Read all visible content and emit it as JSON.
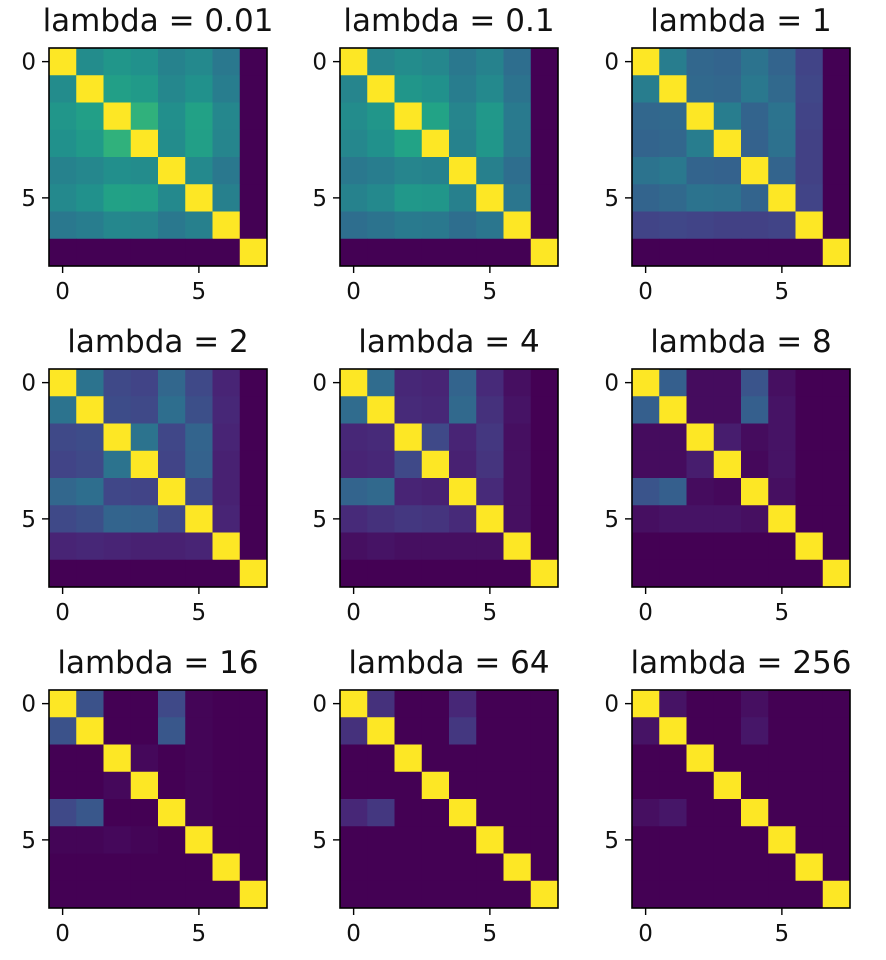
{
  "figure": {
    "layout": {
      "rows": 3,
      "cols": 3
    },
    "colormap": "viridis",
    "color_range": [
      0,
      1
    ]
  },
  "chart_data": [
    {
      "type": "heatmap",
      "title": "lambda = 0.01",
      "size": 8,
      "xticks": [
        0,
        5
      ],
      "yticks": [
        0,
        5
      ],
      "matrix": [
        [
          1.0,
          0.48,
          0.52,
          0.5,
          0.44,
          0.47,
          0.4,
          0.0
        ],
        [
          0.48,
          1.0,
          0.56,
          0.54,
          0.46,
          0.5,
          0.42,
          0.0
        ],
        [
          0.52,
          0.56,
          1.0,
          0.64,
          0.49,
          0.57,
          0.46,
          0.0
        ],
        [
          0.5,
          0.54,
          0.64,
          1.0,
          0.48,
          0.56,
          0.45,
          0.0
        ],
        [
          0.44,
          0.46,
          0.49,
          0.48,
          1.0,
          0.47,
          0.4,
          0.0
        ],
        [
          0.47,
          0.5,
          0.57,
          0.56,
          0.47,
          1.0,
          0.43,
          0.0
        ],
        [
          0.4,
          0.42,
          0.46,
          0.45,
          0.4,
          0.43,
          1.0,
          0.0
        ],
        [
          0.0,
          0.0,
          0.0,
          0.0,
          0.0,
          0.0,
          0.0,
          1.0
        ]
      ]
    },
    {
      "type": "heatmap",
      "title": "lambda = 0.1",
      "size": 8,
      "xticks": [
        0,
        5
      ],
      "yticks": [
        0,
        5
      ],
      "matrix": [
        [
          1.0,
          0.45,
          0.48,
          0.46,
          0.4,
          0.44,
          0.36,
          0.0
        ],
        [
          0.45,
          1.0,
          0.52,
          0.5,
          0.42,
          0.47,
          0.38,
          0.0
        ],
        [
          0.48,
          0.52,
          1.0,
          0.58,
          0.45,
          0.53,
          0.41,
          0.0
        ],
        [
          0.46,
          0.5,
          0.58,
          1.0,
          0.44,
          0.52,
          0.4,
          0.0
        ],
        [
          0.4,
          0.42,
          0.45,
          0.44,
          1.0,
          0.43,
          0.36,
          0.0
        ],
        [
          0.44,
          0.47,
          0.53,
          0.52,
          0.43,
          1.0,
          0.39,
          0.0
        ],
        [
          0.36,
          0.38,
          0.41,
          0.4,
          0.36,
          0.39,
          1.0,
          0.0
        ],
        [
          0.0,
          0.0,
          0.0,
          0.0,
          0.0,
          0.0,
          0.0,
          1.0
        ]
      ]
    },
    {
      "type": "heatmap",
      "title": "lambda = 1",
      "size": 8,
      "xticks": [
        0,
        5
      ],
      "yticks": [
        0,
        5
      ],
      "matrix": [
        [
          1.0,
          0.42,
          0.33,
          0.32,
          0.38,
          0.32,
          0.2,
          0.0
        ],
        [
          0.42,
          1.0,
          0.34,
          0.33,
          0.4,
          0.34,
          0.21,
          0.0
        ],
        [
          0.33,
          0.34,
          1.0,
          0.42,
          0.32,
          0.38,
          0.2,
          0.0
        ],
        [
          0.32,
          0.33,
          0.42,
          1.0,
          0.31,
          0.37,
          0.19,
          0.0
        ],
        [
          0.38,
          0.4,
          0.32,
          0.31,
          1.0,
          0.32,
          0.19,
          0.0
        ],
        [
          0.32,
          0.34,
          0.38,
          0.37,
          0.32,
          1.0,
          0.2,
          0.0
        ],
        [
          0.2,
          0.21,
          0.2,
          0.19,
          0.19,
          0.2,
          1.0,
          0.0
        ],
        [
          0.0,
          0.0,
          0.0,
          0.0,
          0.0,
          0.0,
          0.0,
          1.0
        ]
      ]
    },
    {
      "type": "heatmap",
      "title": "lambda = 2",
      "size": 8,
      "xticks": [
        0,
        5
      ],
      "yticks": [
        0,
        5
      ],
      "matrix": [
        [
          1.0,
          0.38,
          0.22,
          0.2,
          0.33,
          0.22,
          0.1,
          0.0
        ],
        [
          0.38,
          1.0,
          0.23,
          0.22,
          0.36,
          0.24,
          0.11,
          0.0
        ],
        [
          0.22,
          0.23,
          1.0,
          0.38,
          0.21,
          0.32,
          0.1,
          0.0
        ],
        [
          0.2,
          0.22,
          0.38,
          1.0,
          0.2,
          0.31,
          0.09,
          0.0
        ],
        [
          0.33,
          0.36,
          0.21,
          0.2,
          1.0,
          0.22,
          0.09,
          0.0
        ],
        [
          0.22,
          0.24,
          0.32,
          0.31,
          0.22,
          1.0,
          0.1,
          0.0
        ],
        [
          0.1,
          0.11,
          0.1,
          0.09,
          0.09,
          0.1,
          1.0,
          0.0
        ],
        [
          0.0,
          0.0,
          0.0,
          0.0,
          0.0,
          0.0,
          0.0,
          1.0
        ]
      ]
    },
    {
      "type": "heatmap",
      "title": "lambda = 4",
      "size": 8,
      "xticks": [
        0,
        5
      ],
      "yticks": [
        0,
        5
      ],
      "matrix": [
        [
          1.0,
          0.35,
          0.11,
          0.1,
          0.32,
          0.12,
          0.04,
          0.0
        ],
        [
          0.35,
          1.0,
          0.12,
          0.11,
          0.34,
          0.14,
          0.05,
          0.0
        ],
        [
          0.11,
          0.12,
          1.0,
          0.22,
          0.1,
          0.16,
          0.04,
          0.0
        ],
        [
          0.1,
          0.11,
          0.22,
          1.0,
          0.09,
          0.15,
          0.04,
          0.0
        ],
        [
          0.32,
          0.34,
          0.1,
          0.09,
          1.0,
          0.12,
          0.04,
          0.0
        ],
        [
          0.12,
          0.14,
          0.16,
          0.15,
          0.12,
          1.0,
          0.04,
          0.0
        ],
        [
          0.04,
          0.05,
          0.04,
          0.04,
          0.04,
          0.04,
          1.0,
          0.0
        ],
        [
          0.0,
          0.0,
          0.0,
          0.0,
          0.0,
          0.0,
          0.0,
          1.0
        ]
      ]
    },
    {
      "type": "heatmap",
      "title": "lambda = 8",
      "size": 8,
      "xticks": [
        0,
        5
      ],
      "yticks": [
        0,
        5
      ],
      "matrix": [
        [
          1.0,
          0.3,
          0.03,
          0.03,
          0.26,
          0.04,
          0.0,
          0.0
        ],
        [
          0.3,
          1.0,
          0.03,
          0.03,
          0.3,
          0.05,
          0.0,
          0.0
        ],
        [
          0.03,
          0.03,
          1.0,
          0.08,
          0.03,
          0.05,
          0.0,
          0.0
        ],
        [
          0.03,
          0.03,
          0.08,
          1.0,
          0.02,
          0.05,
          0.0,
          0.0
        ],
        [
          0.26,
          0.3,
          0.03,
          0.02,
          1.0,
          0.04,
          0.0,
          0.0
        ],
        [
          0.04,
          0.05,
          0.05,
          0.05,
          0.04,
          1.0,
          0.0,
          0.0
        ],
        [
          0.0,
          0.0,
          0.0,
          0.0,
          0.0,
          0.0,
          1.0,
          0.0
        ],
        [
          0.0,
          0.0,
          0.0,
          0.0,
          0.0,
          0.0,
          0.0,
          1.0
        ]
      ]
    },
    {
      "type": "heatmap",
      "title": "lambda = 16",
      "size": 8,
      "xticks": [
        0,
        5
      ],
      "yticks": [
        0,
        5
      ],
      "matrix": [
        [
          1.0,
          0.25,
          0.0,
          0.0,
          0.22,
          0.01,
          0.0,
          0.0
        ],
        [
          0.25,
          1.0,
          0.0,
          0.0,
          0.27,
          0.01,
          0.0,
          0.0
        ],
        [
          0.0,
          0.0,
          1.0,
          0.02,
          0.0,
          0.01,
          0.0,
          0.0
        ],
        [
          0.0,
          0.0,
          0.02,
          1.0,
          0.0,
          0.01,
          0.0,
          0.0
        ],
        [
          0.22,
          0.27,
          0.0,
          0.0,
          1.0,
          0.01,
          0.0,
          0.0
        ],
        [
          0.01,
          0.01,
          0.02,
          0.01,
          0.0,
          1.0,
          0.0,
          0.0
        ],
        [
          0.0,
          0.0,
          0.0,
          0.0,
          0.0,
          0.0,
          1.0,
          0.0
        ],
        [
          0.0,
          0.0,
          0.0,
          0.0,
          0.0,
          0.0,
          0.0,
          1.0
        ]
      ]
    },
    {
      "type": "heatmap",
      "title": "lambda = 64",
      "size": 8,
      "xticks": [
        0,
        5
      ],
      "yticks": [
        0,
        5
      ],
      "matrix": [
        [
          1.0,
          0.14,
          0.0,
          0.0,
          0.11,
          0.0,
          0.0,
          0.0
        ],
        [
          0.14,
          1.0,
          0.0,
          0.0,
          0.16,
          0.0,
          0.0,
          0.0
        ],
        [
          0.0,
          0.0,
          1.0,
          0.0,
          0.0,
          0.0,
          0.0,
          0.0
        ],
        [
          0.0,
          0.0,
          0.0,
          1.0,
          0.0,
          0.0,
          0.0,
          0.0
        ],
        [
          0.11,
          0.16,
          0.0,
          0.0,
          1.0,
          0.0,
          0.0,
          0.0
        ],
        [
          0.0,
          0.0,
          0.0,
          0.0,
          0.0,
          1.0,
          0.0,
          0.0
        ],
        [
          0.0,
          0.0,
          0.0,
          0.0,
          0.0,
          0.0,
          1.0,
          0.0
        ],
        [
          0.0,
          0.0,
          0.0,
          0.0,
          0.0,
          0.0,
          0.0,
          1.0
        ]
      ]
    },
    {
      "type": "heatmap",
      "title": "lambda = 256",
      "size": 8,
      "xticks": [
        0,
        5
      ],
      "yticks": [
        0,
        5
      ],
      "matrix": [
        [
          1.0,
          0.05,
          0.0,
          0.0,
          0.04,
          0.0,
          0.0,
          0.0
        ],
        [
          0.05,
          1.0,
          0.0,
          0.0,
          0.06,
          0.0,
          0.0,
          0.0
        ],
        [
          0.0,
          0.0,
          1.0,
          0.0,
          0.0,
          0.0,
          0.0,
          0.0
        ],
        [
          0.0,
          0.0,
          0.0,
          1.0,
          0.0,
          0.0,
          0.0,
          0.0
        ],
        [
          0.04,
          0.06,
          0.0,
          0.0,
          1.0,
          0.0,
          0.0,
          0.0
        ],
        [
          0.0,
          0.0,
          0.0,
          0.0,
          0.0,
          1.0,
          0.0,
          0.0
        ],
        [
          0.0,
          0.0,
          0.0,
          0.0,
          0.0,
          0.0,
          1.0,
          0.0
        ],
        [
          0.0,
          0.0,
          0.0,
          0.0,
          0.0,
          0.0,
          0.0,
          1.0
        ]
      ]
    }
  ]
}
